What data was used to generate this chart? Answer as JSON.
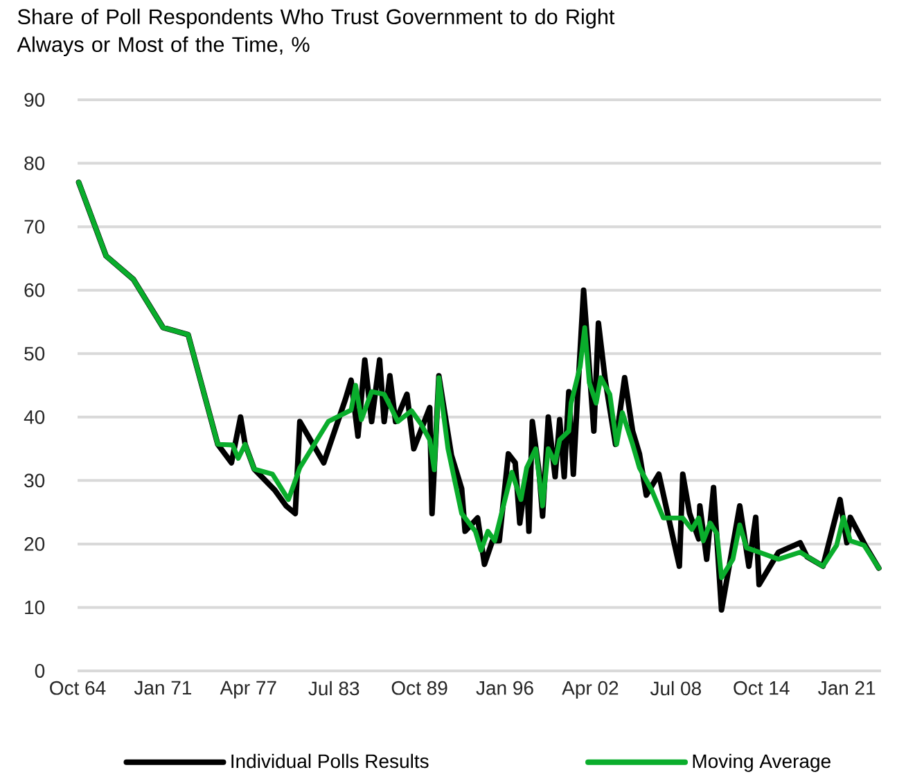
{
  "chart_data": {
    "type": "line",
    "title": "Share of Poll Respondents Who Trust Government to do Right Always or Most of the Time, %",
    "xlim": [
      "1964-10",
      "2023-07"
    ],
    "xticks": [
      {
        "value": "1964-10",
        "label": "Oct 64"
      },
      {
        "value": "1971-01",
        "label": "Jan 71"
      },
      {
        "value": "1977-04",
        "label": "Apr 77"
      },
      {
        "value": "1983-07",
        "label": "Jul 83"
      },
      {
        "value": "1989-10",
        "label": "Oct 89"
      },
      {
        "value": "1996-01",
        "label": "Jan 96"
      },
      {
        "value": "2002-04",
        "label": "Apr 02"
      },
      {
        "value": "2008-07",
        "label": "Jul 08"
      },
      {
        "value": "2014-10",
        "label": "Oct 14"
      },
      {
        "value": "2021-01",
        "label": "Jan 21"
      }
    ],
    "ylim": [
      0,
      90
    ],
    "yticks": [
      0,
      10,
      20,
      30,
      40,
      50,
      60,
      70,
      80,
      90
    ],
    "grid": "y",
    "legend": "bottom",
    "marker": "none",
    "line_style": "solid",
    "series": [
      {
        "name": "Individual Polls Results",
        "color": "#000000",
        "x": [
          "1964-11",
          "1966-11",
          "1968-11",
          "1971-01",
          "1972-11",
          "1975-01",
          "1976-01",
          "1976-09",
          "1977-01",
          "1977-09",
          "1979-03",
          "1980-01",
          "1980-09",
          "1981-01",
          "1982-10",
          "1984-05",
          "1984-10",
          "1985-04",
          "1985-10",
          "1986-04",
          "1986-11",
          "1987-03",
          "1987-08",
          "1988-01",
          "1988-11",
          "1989-05",
          "1990-07",
          "1990-09",
          "1991-03",
          "1992-02",
          "1992-11",
          "1993-02",
          "1994-01",
          "1994-07",
          "1995-02",
          "1995-08",
          "1996-04",
          "1996-10",
          "1997-02",
          "1997-08",
          "1997-10",
          "1998-01",
          "1998-07",
          "1998-10",
          "1999-03",
          "1999-09",
          "2000-01",
          "2000-05",
          "2000-09",
          "2001-01",
          "2001-05",
          "2001-10",
          "2002-07",
          "2002-11",
          "2003-05",
          "2004-02",
          "2004-10",
          "2005-05",
          "2005-11",
          "2006-05",
          "2007-04",
          "2008-10",
          "2009-01",
          "2009-07",
          "2010-03",
          "2010-04",
          "2010-10",
          "2011-04",
          "2011-11",
          "2013-03",
          "2013-11",
          "2014-05",
          "2014-08",
          "2016-01",
          "2017-08",
          "2018-02",
          "2019-04",
          "2020-07",
          "2021-01",
          "2021-04",
          "2022-05",
          "2023-05"
        ],
        "values": [
          77,
          65.4,
          61.7,
          54.1,
          53,
          35.7,
          32.8,
          40,
          35.7,
          31.8,
          28.5,
          26,
          24.8,
          39.3,
          32.8,
          42.8,
          45.8,
          37,
          49,
          39.3,
          49,
          39.3,
          46.5,
          39.3,
          43.6,
          35,
          41.5,
          24.8,
          46.5,
          34,
          28.7,
          22,
          24.1,
          16.8,
          20.5,
          20.5,
          34.2,
          32.8,
          23.3,
          31.3,
          22,
          39.3,
          31.3,
          24.4,
          40,
          30.6,
          39.6,
          30.6,
          44,
          31,
          44.3,
          60,
          37.8,
          54.8,
          45.8,
          35.7,
          46.2,
          37.8,
          34.2,
          27.7,
          31,
          16.5,
          31,
          24.8,
          20.8,
          26,
          17.6,
          28.9,
          9.6,
          26,
          16.5,
          24.2,
          13.6,
          18.7,
          20.2,
          18,
          16.5,
          27,
          20.2,
          24.2,
          19.8,
          16.2
        ]
      },
      {
        "name": "Moving Average",
        "color": "#0aad2c",
        "x": [
          "1964-11",
          "1966-11",
          "1968-11",
          "1971-01",
          "1972-11",
          "1975-01",
          "1976-02",
          "1976-07",
          "1977-01",
          "1977-09",
          "1979-01",
          "1980-03",
          "1981-01",
          "1983-02",
          "1984-10",
          "1985-02",
          "1985-07",
          "1986-04",
          "1987-03",
          "1987-07",
          "1988-03",
          "1989-03",
          "1989-11",
          "1990-07",
          "1990-11",
          "1991-03",
          "1991-11",
          "1992-11",
          "1993-11",
          "1994-04",
          "1994-10",
          "1995-04",
          "1996-01",
          "1996-07",
          "1997-03",
          "1997-08",
          "1998-04",
          "1998-10",
          "1999-03",
          "1999-09",
          "2000-01",
          "2000-09",
          "2000-11",
          "2001-07",
          "2001-11",
          "2002-03",
          "2002-09",
          "2003-01",
          "2003-09",
          "2004-03",
          "2004-08",
          "2005-05",
          "2005-11",
          "2006-10",
          "2007-08",
          "2009-01",
          "2009-09",
          "2010-03",
          "2010-07",
          "2011-01",
          "2011-07",
          "2011-11",
          "2012-09",
          "2013-03",
          "2013-09",
          "2014-08",
          "2016-01",
          "2017-08",
          "2019-04",
          "2020-04",
          "2020-10",
          "2021-04",
          "2022-04",
          "2023-05"
        ],
        "values": [
          77,
          65.4,
          61.7,
          54.1,
          53,
          35.7,
          35.6,
          33.5,
          35.7,
          31.8,
          31,
          27,
          32,
          39.3,
          41.1,
          45,
          39.6,
          44,
          43.6,
          42.2,
          39.3,
          41,
          39,
          36.4,
          31.7,
          46.2,
          35,
          24.8,
          22,
          19,
          22,
          20.5,
          27,
          31.3,
          27,
          32,
          35,
          26,
          35,
          32.8,
          36.4,
          37.8,
          42.2,
          48,
          54.1,
          45.4,
          42.2,
          46.2,
          43.6,
          35.7,
          40.7,
          35.7,
          32,
          28.4,
          24.1,
          24.1,
          22.3,
          24.1,
          20.5,
          23.3,
          21.6,
          14.7,
          17.6,
          23,
          19.4,
          18.7,
          17.6,
          18.7,
          16.5,
          19.8,
          24.2,
          20.5,
          19.8,
          16.2
        ]
      }
    ]
  }
}
